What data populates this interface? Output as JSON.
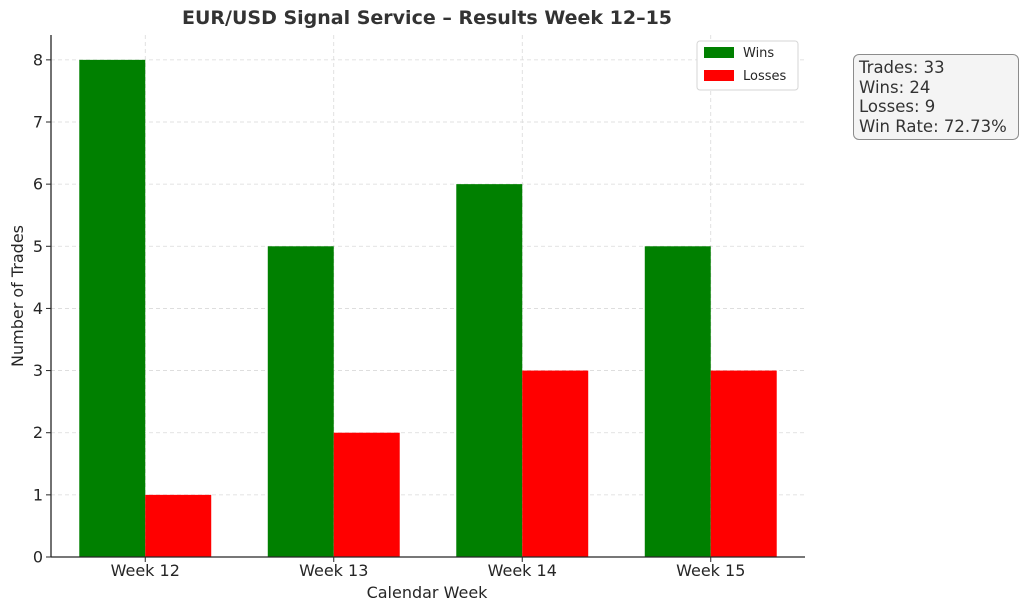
{
  "chart_data": {
    "type": "bar",
    "title": "EUR/USD Signal Service – Results Week 12–15",
    "xlabel": "Calendar Week",
    "ylabel": "Number of Trades",
    "categories": [
      "Week 12",
      "Week 13",
      "Week 14",
      "Week 15"
    ],
    "series": [
      {
        "name": "Wins",
        "values": [
          8,
          5,
          6,
          5
        ],
        "color": "#008000"
      },
      {
        "name": "Losses",
        "values": [
          1,
          2,
          3,
          3
        ],
        "color": "#ff0000"
      }
    ],
    "ylim": [
      0,
      8.4
    ],
    "yticks": [
      "0",
      "1",
      "2",
      "3",
      "4",
      "5",
      "6",
      "7",
      "8"
    ],
    "grid": true,
    "legend_position": "top-right"
  },
  "stats_box": {
    "trades": "Trades: 33",
    "wins": "Wins: 24",
    "losses": "Losses: 9",
    "win_rate": "Win Rate: 72.73%"
  }
}
